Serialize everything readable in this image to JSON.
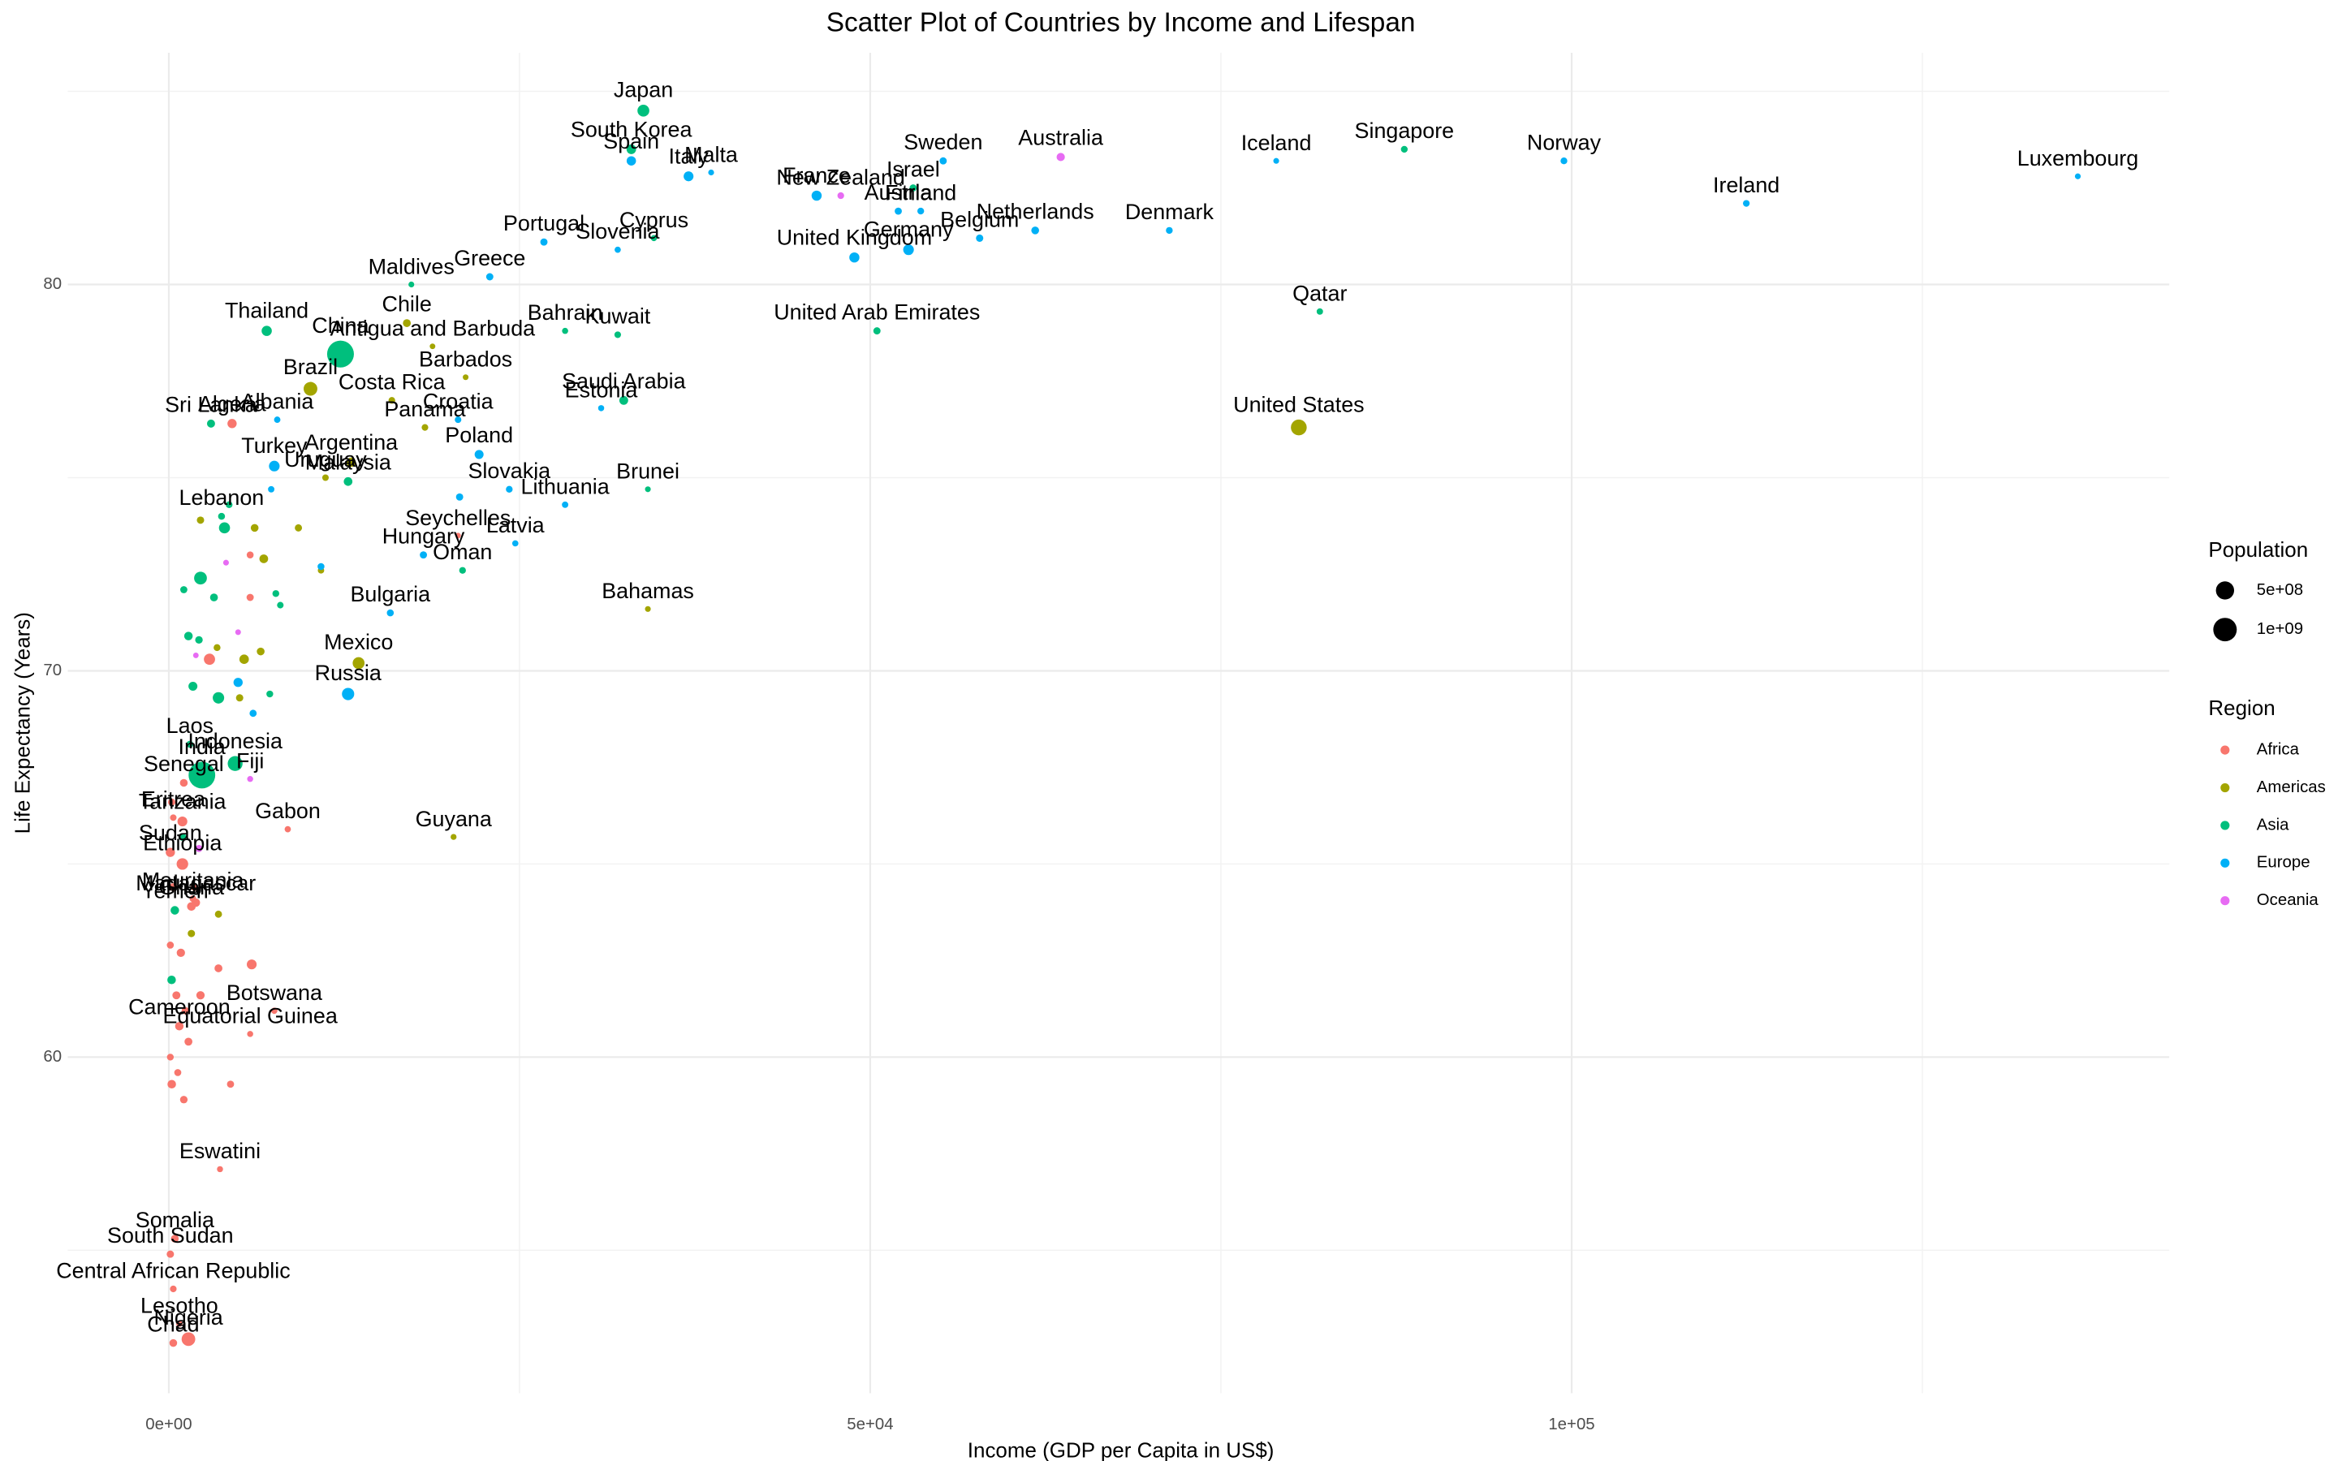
{
  "chart_data": {
    "type": "scatter",
    "title": "Scatter Plot of Countries by Income and Lifespan",
    "x_label": "Income (GDP per Capita in US$)",
    "y_label": "Life Expectancy (Years)",
    "xlim": [
      -7200,
      142600
    ],
    "ylim": [
      51.3,
      86.0
    ],
    "xticks": [
      {
        "value": 0,
        "label": "0e+00"
      },
      {
        "value": 50000,
        "label": "5e+04"
      },
      {
        "value": 100000,
        "label": "1e+05"
      }
    ],
    "yticks": [
      60,
      70,
      80
    ],
    "x_minor_grid": [
      25000,
      75000,
      125000
    ],
    "y_minor_grid": [
      55,
      65,
      75,
      85
    ],
    "grid": true,
    "legend": "right",
    "size_legend_title": "Population",
    "size_legend": [
      {
        "value": 500000000,
        "label": "5e+08"
      },
      {
        "value": 1000000000,
        "label": "1e+09"
      }
    ],
    "color_legend_title": "Region",
    "series": [
      {
        "name": "Africa",
        "color": "#F8766D",
        "labels": [
          "Algeria",
          "Seychelles",
          "Senegal",
          "Eritrea",
          "Gabon",
          "Tanzania",
          "Ethiopia",
          "Sudan",
          "Mauritania",
          "Madagascar",
          "Ghana",
          "Botswana",
          "Cameroon",
          "Equatorial Guinea",
          "Eswatini",
          "Somalia",
          "South Sudan",
          "Central African Republic",
          "Lesotho",
          "Nigeria",
          "Chad",
          null,
          null,
          null,
          null,
          null,
          null,
          null,
          null,
          null,
          null,
          null,
          null,
          null,
          null,
          null,
          null,
          null,
          null,
          null
        ],
        "x": [
          4510,
          20620,
          1070,
          320,
          8480,
          970,
          970,
          110,
          1720,
          1930,
          1610,
          7520,
          750,
          5800,
          3650,
          430,
          110,
          320,
          750,
          1400,
          320,
          5800,
          2900,
          210,
          320,
          110,
          860,
          3540,
          5910,
          540,
          2260,
          1180,
          110,
          1400,
          640,
          210,
          4400,
          1070,
          5800,
          1830
        ],
        "y": [
          76.4,
          73.5,
          67.1,
          66.2,
          65.9,
          66.1,
          65.0,
          65.3,
          64.1,
          64.0,
          63.9,
          61.2,
          60.8,
          60.6,
          57.1,
          55.3,
          54.9,
          54.0,
          53.1,
          52.7,
          52.6,
          71.9,
          70.3,
          66.6,
          64.4,
          62.9,
          62.7,
          62.3,
          62.4,
          61.6,
          61.6,
          61.2,
          60.0,
          60.4,
          59.6,
          59.3,
          59.3,
          58.9,
          73.0,
          64.4
        ],
        "size": [
          44000000,
          100000,
          17000000,
          3500000,
          2200000,
          60000000,
          115000000,
          44000000,
          4600000,
          28000000,
          31000000,
          2400000,
          27000000,
          1400000,
          1200000,
          16000000,
          11000000,
          4800000,
          2100000,
          206000000,
          16000000,
          10000000,
          102000000,
          12000000,
          20000000,
          8000000,
          26000000,
          19000000,
          59000000,
          20000000,
          26000000,
          13000000,
          6000000,
          19000000,
          8000000,
          30000000,
          9000000,
          14000000,
          7000000,
          12000000
        ]
      },
      {
        "name": "Americas",
        "color": "#A3A500",
        "labels": [
          "Chile",
          "Antigua and Barbuda",
          "Barbados",
          "Costa Rica",
          "Panama",
          "Brazil",
          "Argentina",
          "Uruguay",
          "Mexico",
          "United States",
          "Bahamas",
          "Guyana",
          null,
          null,
          null,
          null,
          null,
          null,
          null,
          null,
          null,
          null,
          null
        ],
        "x": [
          16970,
          18800,
          21160,
          15900,
          18260,
          10100,
          13000,
          11170,
          13530,
          80550,
          34150,
          20300,
          2260,
          6120,
          9240,
          6770,
          10850,
          5370,
          6550,
          5050,
          3440,
          1610,
          3540
        ],
        "y": [
          79.0,
          78.4,
          77.6,
          77.0,
          76.3,
          77.3,
          75.4,
          75.0,
          70.2,
          76.3,
          71.6,
          65.7,
          73.9,
          73.7,
          73.7,
          72.9,
          72.6,
          70.3,
          70.5,
          69.3,
          70.6,
          63.2,
          63.7
        ],
        "size": [
          19000000,
          100000,
          300000,
          5000000,
          4300000,
          212000000,
          45000000,
          3500000,
          128000000,
          331000000,
          400000,
          800000,
          11000000,
          17000000,
          10000000,
          33000000,
          3000000,
          50000000,
          17000000,
          11000000,
          6600000,
          11000000,
          9000000
        ]
      },
      {
        "name": "Asia",
        "color": "#00BF7D",
        "labels": [
          "Japan",
          "South Korea",
          "Singapore",
          "Israel",
          "Cyprus",
          "Maldives",
          "Thailand",
          "China",
          "Bahrain",
          "Kuwait",
          "Qatar",
          "United Arab Emirates",
          "Saudi Arabia",
          "Sri Lanka",
          "Lebanon",
          "Malaysia",
          "Brunei",
          "Oman",
          "Indonesia",
          "India",
          "Laos",
          "Yemen",
          null,
          null,
          null,
          null,
          null,
          null,
          null,
          null,
          null,
          null,
          null,
          null,
          null,
          null
        ],
        "x": [
          33830,
          32970,
          88070,
          53060,
          34580,
          17290,
          6980,
          12240,
          28250,
          32000,
          82050,
          50480,
          32430,
          3010,
          3760,
          12780,
          34150,
          20940,
          4730,
          2360,
          1500,
          430,
          1070,
          3220,
          1400,
          2150,
          4300,
          1720,
          3540,
          7200,
          7630,
          7950,
          200,
          970,
          2260,
          3970
        ],
        "y": [
          84.5,
          83.5,
          83.5,
          82.5,
          81.2,
          80.0,
          78.8,
          78.2,
          78.8,
          78.7,
          79.3,
          78.8,
          77.0,
          76.4,
          74.0,
          74.9,
          74.7,
          72.6,
          67.6,
          67.3,
          68.1,
          63.8,
          72.1,
          71.9,
          70.9,
          70.8,
          74.3,
          69.6,
          69.3,
          69.4,
          72.0,
          71.7,
          62.0,
          65.7,
          72.4,
          73.7
        ],
        "size": [
          126000000,
          52000000,
          5700000,
          9000000,
          1200000,
          500000,
          70000000,
          1400000000,
          1700000,
          4300000,
          2900000,
          9900000,
          35000000,
          21000000,
          6800000,
          32000000,
          400000,
          5100000,
          274000000,
          1380000000,
          7300000,
          30000000,
          9000000,
          18000000,
          30000000,
          14000000,
          6000000,
          38000000,
          110000000,
          6000000,
          6000000,
          4000000,
          30000000,
          17000000,
          165000000,
          97000000
        ]
      },
      {
        "name": "Europe",
        "color": "#00B0F6",
        "labels": [
          "Spain",
          "Malta",
          "Italy",
          "France",
          "Sweden",
          "Iceland",
          "Norway",
          "Ireland",
          "Luxembourg",
          "Finland",
          "Netherlands",
          "Belgium",
          "Austria",
          "Denmark",
          "Germany",
          "United Kingdom",
          "Portugal",
          "Greece",
          "Slovenia",
          "Croatia",
          "Estonia",
          "Poland",
          "Slovakia",
          "Lithuania",
          "Latvia",
          "Hungary",
          "Albania",
          "Turkey",
          "Bulgaria",
          "Russia",
          null,
          null,
          null,
          null,
          null
        ],
        "x": [
          32970,
          38660,
          37050,
          46180,
          55200,
          78940,
          99450,
          112450,
          136080,
          53600,
          61760,
          57800,
          52000,
          71320,
          52730,
          48870,
          26740,
          22880,
          32000,
          20620,
          30820,
          22120,
          24270,
          28250,
          24700,
          18150,
          7730,
          7520,
          15790,
          12780,
          20730,
          10850,
          4940,
          6010,
          7300
        ],
        "y": [
          83.2,
          82.9,
          82.8,
          82.3,
          83.2,
          83.2,
          83.2,
          82.1,
          82.8,
          81.9,
          81.4,
          81.2,
          81.9,
          81.4,
          80.9,
          80.7,
          81.1,
          80.2,
          80.9,
          76.5,
          76.8,
          75.6,
          74.7,
          74.3,
          73.3,
          73.0,
          76.5,
          75.3,
          71.5,
          69.4,
          74.5,
          72.7,
          69.7,
          68.9,
          74.7
        ],
        "size": [
          47000000,
          500000,
          60000000,
          67000000,
          10000000,
          400000,
          5400000,
          5000000,
          600000,
          5500000,
          17000000,
          11500000,
          9000000,
          5800000,
          83000000,
          67000000,
          10000000,
          10000000,
          2100000,
          4000000,
          1300000,
          38000000,
          5500000,
          2800000,
          1900000,
          9700000,
          2800000,
          84000000,
          7000000,
          144000000,
          10000000,
          7000000,
          44000000,
          9000000,
          3000000
        ]
      },
      {
        "name": "Oceania",
        "color": "#E76BF3",
        "labels": [
          "Australia",
          "New Zealand",
          "Fiji",
          null,
          null,
          null,
          null
        ],
        "x": [
          63580,
          47900,
          5800,
          4080,
          1930,
          2150,
          4940
        ],
        "y": [
          83.3,
          82.3,
          67.2,
          72.8,
          70.4,
          65.4,
          71.0
        ],
        "size": [
          25000000,
          5000000,
          900000,
          300000,
          100000,
          9000000,
          200000
        ]
      }
    ]
  }
}
